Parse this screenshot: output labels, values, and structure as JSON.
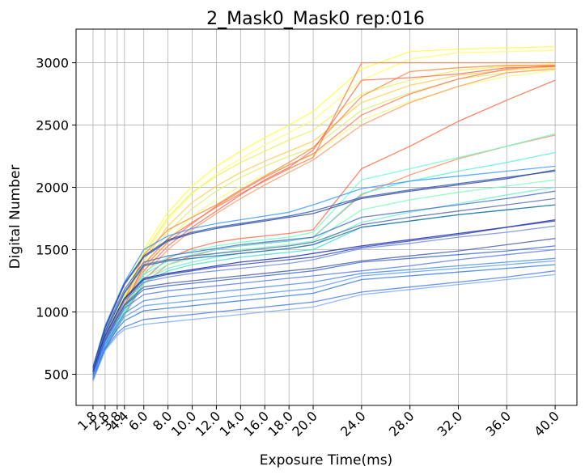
{
  "chart_data": {
    "type": "line",
    "title": "2_Mask0_Mask0 rep:016",
    "xlabel": "Exposure Time(ms)",
    "ylabel": "Digital Number",
    "x": [
      1.8,
      2.8,
      3.8,
      4.4,
      6.0,
      8.0,
      10.0,
      12.0,
      14.0,
      16.0,
      18.0,
      20.0,
      24.0,
      28.0,
      32.0,
      36.0,
      40.0
    ],
    "x_tick_labels": [
      "1.8",
      "2.8",
      "3.8",
      "4.4",
      "6.0",
      "8.0",
      "10.0",
      "12.0",
      "14.0",
      "16.0",
      "18.0",
      "20.0",
      "24.0",
      "28.0",
      "32.0",
      "36.0",
      "40.0"
    ],
    "y_ticks": [
      500,
      1000,
      1500,
      2000,
      2500,
      3000
    ],
    "xlim": [
      0.4,
      41.8
    ],
    "ylim": [
      250,
      3270
    ],
    "grid": true,
    "series": [
      {
        "color": "#ffff33",
        "values": [
          510,
          810,
          1010,
          1130,
          1500,
          1800,
          2010,
          2170,
          2290,
          2400,
          2500,
          2610,
          2950,
          3090,
          3110,
          3120,
          3130
        ]
      },
      {
        "color": "#ffff66",
        "values": [
          500,
          795,
          985,
          1095,
          1450,
          1740,
          1950,
          2110,
          2230,
          2340,
          2440,
          2540,
          2860,
          3030,
          3080,
          3090,
          3100
        ]
      },
      {
        "color": "#eeee55",
        "values": [
          505,
          800,
          1000,
          1110,
          1470,
          1760,
          1960,
          2090,
          2200,
          2290,
          2380,
          2460,
          2750,
          2860,
          2940,
          2970,
          2990
        ]
      },
      {
        "color": "#ddee66",
        "values": [
          480,
          760,
          950,
          1050,
          1380,
          1640,
          1830,
          1970,
          2080,
          2170,
          2250,
          2320,
          2620,
          2760,
          2870,
          2920,
          2960
        ]
      },
      {
        "color": "#eeff77",
        "values": [
          470,
          740,
          920,
          1020,
          1330,
          1580,
          1770,
          1900,
          2010,
          2100,
          2180,
          2260,
          2540,
          2690,
          2810,
          2890,
          2940
        ]
      },
      {
        "color": "#ffcc44",
        "values": [
          490,
          780,
          970,
          1080,
          1410,
          1690,
          1880,
          2010,
          2120,
          2210,
          2290,
          2370,
          2680,
          2820,
          2900,
          2940,
          2970
        ]
      },
      {
        "color": "#ff8833",
        "values": [
          480,
          770,
          970,
          1090,
          1460,
          1660,
          1760,
          1860,
          1980,
          2090,
          2200,
          2320,
          2730,
          2930,
          2960,
          2980,
          2980
        ]
      },
      {
        "color": "#ff7744",
        "values": [
          470,
          750,
          940,
          1050,
          1380,
          1590,
          1720,
          1840,
          1950,
          2050,
          2150,
          2240,
          3000,
          3000,
          3000,
          3000,
          3000
        ]
      },
      {
        "color": "#ff6655",
        "values": [
          460,
          730,
          920,
          1030,
          1330,
          1530,
          1680,
          1810,
          1940,
          2060,
          2160,
          2300,
          2860,
          2880,
          2910,
          2960,
          2970
        ]
      },
      {
        "color": "#ff7755",
        "values": [
          465,
          740,
          930,
          1040,
          1360,
          1560,
          1710,
          1850,
          1970,
          2080,
          2180,
          2270,
          2580,
          2750,
          2870,
          2950,
          2980
        ]
      },
      {
        "color": "#ff9966",
        "values": [
          455,
          720,
          900,
          1000,
          1300,
          1500,
          1660,
          1790,
          1910,
          2020,
          2120,
          2220,
          2500,
          2680,
          2810,
          2920,
          2950
        ]
      },
      {
        "color": "#ff6644",
        "values": [
          450,
          710,
          880,
          980,
          1260,
          1430,
          1510,
          1560,
          1590,
          1610,
          1630,
          1660,
          2150,
          2330,
          2530,
          2700,
          2860
        ]
      },
      {
        "color": "#ff8855",
        "values": [
          445,
          700,
          870,
          970,
          1230,
          1380,
          1450,
          1500,
          1530,
          1550,
          1570,
          1600,
          1940,
          2100,
          2230,
          2330,
          2420
        ]
      },
      {
        "color": "#66ffcc",
        "values": [
          490,
          760,
          930,
          1040,
          1320,
          1440,
          1490,
          1530,
          1560,
          1580,
          1600,
          1640,
          2060,
          2150,
          2240,
          2330,
          2430
        ]
      },
      {
        "color": "#55eedd",
        "values": [
          480,
          745,
          915,
          1020,
          1300,
          1410,
          1460,
          1500,
          1530,
          1550,
          1570,
          1600,
          1950,
          2050,
          2130,
          2200,
          2280
        ]
      },
      {
        "color": "#77ffbb",
        "values": [
          470,
          730,
          900,
          1000,
          1270,
          1380,
          1430,
          1470,
          1500,
          1520,
          1540,
          1570,
          1820,
          1900,
          1960,
          2010,
          2060
        ]
      },
      {
        "color": "#66eecc",
        "values": [
          460,
          720,
          890,
          990,
          1250,
          1350,
          1400,
          1440,
          1470,
          1490,
          1510,
          1540,
          1720,
          1800,
          1870,
          1940,
          2000
        ]
      },
      {
        "color": "#44ddcc",
        "values": [
          455,
          710,
          880,
          980,
          1230,
          1330,
          1380,
          1410,
          1440,
          1460,
          1480,
          1500,
          1680,
          1730,
          1780,
          1820,
          1860
        ]
      },
      {
        "color": "#3399ff",
        "values": [
          560,
          890,
          1110,
          1240,
          1500,
          1610,
          1670,
          1710,
          1740,
          1770,
          1800,
          1860,
          1990,
          2050,
          2090,
          2130,
          2170
        ]
      },
      {
        "color": "#2255bb",
        "values": [
          555,
          880,
          1100,
          1230,
          1450,
          1580,
          1640,
          1680,
          1710,
          1740,
          1770,
          1810,
          1920,
          1980,
          2030,
          2080,
          2130
        ]
      },
      {
        "color": "#334499",
        "values": [
          550,
          870,
          1090,
          1220,
          1440,
          1570,
          1630,
          1670,
          1700,
          1730,
          1760,
          1790,
          1910,
          1970,
          2020,
          2070,
          2140
        ]
      },
      {
        "color": "#4466cc",
        "values": [
          540,
          850,
          1060,
          1180,
          1400,
          1450,
          1480,
          1510,
          1540,
          1560,
          1580,
          1600,
          1760,
          1810,
          1860,
          1910,
          1970
        ]
      },
      {
        "color": "#5566aa",
        "values": [
          530,
          840,
          1040,
          1160,
          1380,
          1420,
          1450,
          1470,
          1490,
          1510,
          1530,
          1560,
          1700,
          1760,
          1810,
          1860,
          1910
        ]
      },
      {
        "color": "#2266aa",
        "values": [
          525,
          830,
          1030,
          1150,
          1370,
          1410,
          1430,
          1450,
          1470,
          1490,
          1510,
          1540,
          1680,
          1730,
          1780,
          1820,
          1860
        ]
      },
      {
        "color": "#1122aa",
        "values": [
          520,
          810,
          1000,
          1110,
          1270,
          1310,
          1340,
          1370,
          1400,
          1420,
          1440,
          1470,
          1530,
          1580,
          1630,
          1680,
          1740
        ]
      },
      {
        "color": "#3344bb",
        "values": [
          515,
          800,
          990,
          1100,
          1260,
          1300,
          1330,
          1360,
          1380,
          1400,
          1420,
          1440,
          1520,
          1570,
          1620,
          1680,
          1730
        ]
      },
      {
        "color": "#6688dd",
        "values": [
          500,
          790,
          980,
          1090,
          1240,
          1280,
          1310,
          1330,
          1350,
          1370,
          1390,
          1420,
          1510,
          1550,
          1600,
          1640,
          1690
        ]
      },
      {
        "color": "#4455aa",
        "values": [
          500,
          780,
          960,
          1060,
          1200,
          1230,
          1250,
          1270,
          1290,
          1310,
          1330,
          1350,
          1410,
          1450,
          1490,
          1540,
          1590
        ]
      },
      {
        "color": "#3366cc",
        "values": [
          495,
          770,
          950,
          1050,
          1180,
          1210,
          1230,
          1250,
          1270,
          1290,
          1310,
          1330,
          1400,
          1430,
          1460,
          1490,
          1530
        ]
      },
      {
        "color": "#5577ee",
        "values": [
          490,
          760,
          930,
          1030,
          1140,
          1170,
          1190,
          1210,
          1230,
          1250,
          1270,
          1290,
          1330,
          1370,
          1420,
          1460,
          1500
        ]
      },
      {
        "color": "#4488ee",
        "values": [
          480,
          740,
          900,
          990,
          1090,
          1120,
          1140,
          1160,
          1180,
          1200,
          1220,
          1240,
          1310,
          1340,
          1370,
          1400,
          1430
        ]
      },
      {
        "color": "#5599ff",
        "values": [
          470,
          730,
          880,
          960,
          1050,
          1070,
          1090,
          1110,
          1130,
          1150,
          1170,
          1190,
          1290,
          1320,
          1350,
          1380,
          1410
        ]
      },
      {
        "color": "#3377dd",
        "values": [
          460,
          710,
          860,
          930,
          1010,
          1030,
          1050,
          1070,
          1090,
          1110,
          1130,
          1150,
          1260,
          1290,
          1320,
          1350,
          1380
        ]
      },
      {
        "color": "#4477ee",
        "values": [
          455,
          700,
          830,
          880,
          940,
          960,
          980,
          1000,
          1020,
          1040,
          1060,
          1080,
          1160,
          1200,
          1240,
          1280,
          1330
        ]
      },
      {
        "color": "#77aaff",
        "values": [
          450,
          690,
          810,
          860,
          900,
          920,
          940,
          960,
          980,
          1000,
          1020,
          1040,
          1140,
          1180,
          1220,
          1260,
          1300
        ]
      }
    ]
  }
}
